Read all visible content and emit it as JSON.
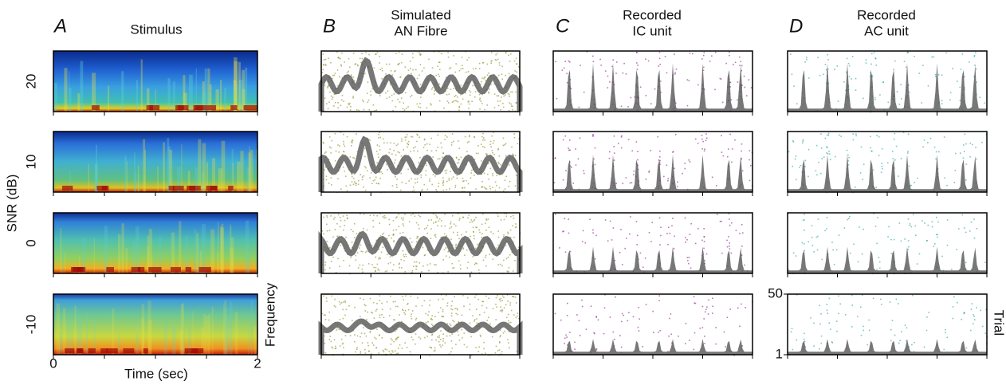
{
  "panels": [
    {
      "letter": "A",
      "title": [
        "Stimulus"
      ]
    },
    {
      "letter": "B",
      "title": [
        "Simulated",
        "AN Fibre"
      ]
    },
    {
      "letter": "C",
      "title": [
        "Recorded",
        "IC unit"
      ]
    },
    {
      "letter": "D",
      "title": [
        "Recorded",
        "AC unit"
      ]
    }
  ],
  "y_axis_label": "SNR (dB)",
  "snr_rows": [
    20,
    10,
    0,
    -10
  ],
  "frequency_label": "Frequency",
  "x_axis": {
    "label": "Time (sec)",
    "xlim": [
      0,
      2
    ],
    "xticks": [
      0,
      2
    ]
  },
  "trial_axis": {
    "label": "Trial",
    "ylim": [
      1,
      50
    ],
    "yticks": [
      50,
      1
    ]
  }
}
